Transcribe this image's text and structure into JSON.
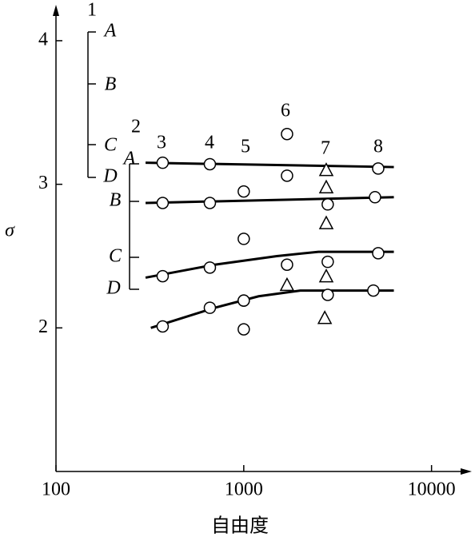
{
  "chart_data": {
    "type": "scatter",
    "x_label": "自由度",
    "y_label": "σ",
    "xlim": [
      100,
      15000
    ],
    "ylim": [
      1,
      4.2
    ],
    "log_x": true,
    "xticks": [
      100,
      1000,
      10000
    ],
    "yticks": [
      2,
      3,
      4
    ],
    "color": "#000000",
    "points": [
      {
        "marker": "circle",
        "x": [
          370,
          660,
          1000,
          1700,
          5200,
          370,
          660,
          2800,
          5000,
          1000,
          1000,
          370,
          660,
          1700,
          2800,
          5200,
          370,
          660,
          1000,
          1000,
          2800,
          4900,
          1700
        ],
        "values": [
          3.15,
          3.14,
          2.95,
          3.06,
          3.11,
          2.87,
          2.87,
          2.86,
          2.91,
          2.62,
          1.99,
          2.36,
          2.42,
          2.44,
          2.46,
          2.52,
          2.01,
          2.14,
          2.19,
          2.19,
          2.23,
          2.26,
          3.35
        ]
      },
      {
        "marker": "triangle",
        "x": [
          2750,
          2750,
          2750,
          1700,
          2750,
          2700
        ],
        "values": [
          3.1,
          2.98,
          2.73,
          2.3,
          2.36,
          2.07
        ]
      }
    ],
    "lines": [
      {
        "x": [
          300,
          6300
        ],
        "values": [
          3.15,
          3.12
        ]
      },
      {
        "x": [
          300,
          6300
        ],
        "values": [
          2.87,
          2.91
        ]
      },
      {
        "x": [
          300,
          700,
          1500,
          2500,
          6300
        ],
        "values": [
          2.35,
          2.44,
          2.5,
          2.53,
          2.53
        ]
      },
      {
        "x": [
          320,
          700,
          1200,
          2000,
          6300
        ],
        "values": [
          2.0,
          2.14,
          2.22,
          2.26,
          2.26
        ]
      }
    ],
    "scales": [
      {
        "label": "1",
        "marks": [
          "A",
          "B",
          "C",
          "D"
        ]
      },
      {
        "label": "2",
        "marks": [
          "A",
          "B",
          "C",
          "D"
        ]
      }
    ],
    "column_labels": [
      "3",
      "4",
      "5",
      "6",
      "7",
      "8"
    ]
  }
}
